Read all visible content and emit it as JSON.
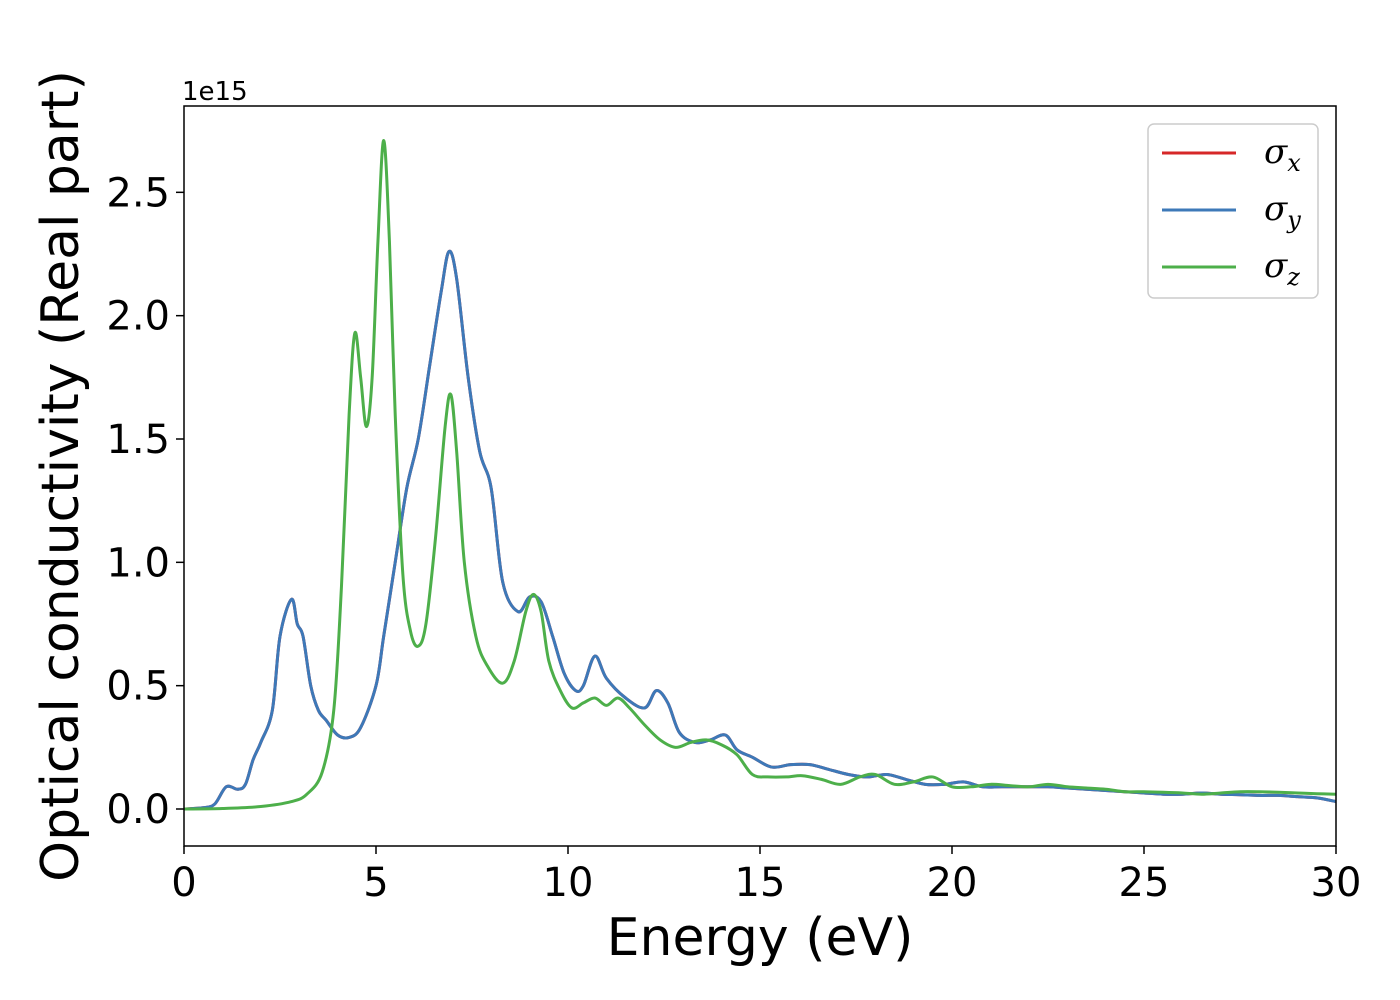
{
  "chart_data": {
    "type": "line",
    "title": "",
    "xlabel": "Energy (eV)",
    "ylabel": "Optical conductivity (Real part)",
    "y_offset_text": "1e15",
    "xlim": [
      0,
      30
    ],
    "ylim": [
      -0.15,
      2.85
    ],
    "x_ticks": [
      0,
      5,
      10,
      15,
      20,
      25,
      30
    ],
    "x_tick_labels": [
      "0",
      "5",
      "10",
      "15",
      "20",
      "25",
      "30"
    ],
    "y_ticks": [
      0.0,
      0.5,
      1.0,
      1.5,
      2.0,
      2.5
    ],
    "y_tick_labels": [
      "0.0",
      "0.5",
      "1.0",
      "1.5",
      "2.0",
      "2.5"
    ],
    "grid": false,
    "legend_position": "top-right",
    "series": [
      {
        "name": "σ_x",
        "legend_symbol": "σ",
        "legend_sub": "x",
        "color": "#d62728",
        "x": [
          0,
          0.5,
          0.8,
          1.1,
          1.4,
          1.6,
          1.8,
          2.0,
          2.3,
          2.5,
          2.8,
          2.95,
          3.1,
          3.3,
          3.5,
          3.7,
          4.0,
          4.3,
          4.6,
          5.0,
          5.2,
          5.5,
          5.8,
          6.1,
          6.4,
          6.7,
          6.9,
          7.1,
          7.4,
          7.7,
          8.0,
          8.3,
          8.7,
          9.0,
          9.3,
          9.6,
          9.9,
          10.2,
          10.4,
          10.7,
          11.0,
          11.5,
          12.0,
          12.3,
          12.6,
          12.9,
          13.3,
          13.7,
          14.1,
          14.4,
          14.8,
          15.3,
          15.8,
          16.3,
          16.8,
          17.3,
          17.8,
          18.3,
          18.8,
          19.3,
          19.8,
          20.3,
          20.8,
          21.3,
          22.0,
          22.5,
          23.0,
          23.5,
          24.0,
          24.5,
          25.0,
          25.5,
          26.0,
          26.5,
          27.0,
          27.5,
          28.0,
          28.5,
          29.0,
          29.5,
          30.0
        ],
        "y": [
          0.0,
          0.005,
          0.02,
          0.09,
          0.08,
          0.1,
          0.2,
          0.27,
          0.4,
          0.7,
          0.85,
          0.75,
          0.7,
          0.5,
          0.4,
          0.36,
          0.3,
          0.29,
          0.33,
          0.5,
          0.7,
          1.0,
          1.3,
          1.5,
          1.8,
          2.1,
          2.26,
          2.15,
          1.75,
          1.45,
          1.3,
          0.92,
          0.8,
          0.86,
          0.84,
          0.7,
          0.55,
          0.48,
          0.5,
          0.62,
          0.53,
          0.45,
          0.41,
          0.48,
          0.43,
          0.31,
          0.27,
          0.28,
          0.3,
          0.24,
          0.21,
          0.17,
          0.18,
          0.18,
          0.16,
          0.14,
          0.13,
          0.14,
          0.12,
          0.1,
          0.1,
          0.11,
          0.09,
          0.09,
          0.09,
          0.09,
          0.085,
          0.08,
          0.075,
          0.07,
          0.065,
          0.06,
          0.06,
          0.065,
          0.06,
          0.058,
          0.055,
          0.055,
          0.05,
          0.045,
          0.03
        ]
      },
      {
        "name": "σ_y",
        "legend_symbol": "σ",
        "legend_sub": "y",
        "color": "#3d79b8",
        "x": [
          0,
          0.5,
          0.8,
          1.1,
          1.4,
          1.6,
          1.8,
          2.0,
          2.3,
          2.5,
          2.8,
          2.95,
          3.1,
          3.3,
          3.5,
          3.7,
          4.0,
          4.3,
          4.6,
          5.0,
          5.2,
          5.5,
          5.8,
          6.1,
          6.4,
          6.7,
          6.9,
          7.1,
          7.4,
          7.7,
          8.0,
          8.3,
          8.7,
          9.0,
          9.3,
          9.6,
          9.9,
          10.2,
          10.4,
          10.7,
          11.0,
          11.5,
          12.0,
          12.3,
          12.6,
          12.9,
          13.3,
          13.7,
          14.1,
          14.4,
          14.8,
          15.3,
          15.8,
          16.3,
          16.8,
          17.3,
          17.8,
          18.3,
          18.8,
          19.3,
          19.8,
          20.3,
          20.8,
          21.3,
          22.0,
          22.5,
          23.0,
          23.5,
          24.0,
          24.5,
          25.0,
          25.5,
          26.0,
          26.5,
          27.0,
          27.5,
          28.0,
          28.5,
          29.0,
          29.5,
          30.0
        ],
        "y": [
          0.0,
          0.005,
          0.02,
          0.09,
          0.08,
          0.1,
          0.2,
          0.27,
          0.4,
          0.7,
          0.85,
          0.75,
          0.7,
          0.5,
          0.4,
          0.36,
          0.3,
          0.29,
          0.33,
          0.5,
          0.7,
          1.0,
          1.3,
          1.5,
          1.8,
          2.1,
          2.26,
          2.15,
          1.75,
          1.45,
          1.3,
          0.92,
          0.8,
          0.86,
          0.84,
          0.7,
          0.55,
          0.48,
          0.5,
          0.62,
          0.53,
          0.45,
          0.41,
          0.48,
          0.43,
          0.31,
          0.27,
          0.28,
          0.3,
          0.24,
          0.21,
          0.17,
          0.18,
          0.18,
          0.16,
          0.14,
          0.13,
          0.14,
          0.12,
          0.1,
          0.1,
          0.11,
          0.09,
          0.09,
          0.09,
          0.09,
          0.085,
          0.08,
          0.075,
          0.07,
          0.065,
          0.06,
          0.06,
          0.065,
          0.06,
          0.058,
          0.055,
          0.055,
          0.05,
          0.045,
          0.03
        ]
      },
      {
        "name": "σ_z",
        "legend_symbol": "σ",
        "legend_sub": "z",
        "color": "#4daf4a",
        "x": [
          0,
          1.0,
          2.0,
          2.8,
          3.2,
          3.6,
          3.9,
          4.1,
          4.3,
          4.45,
          4.6,
          4.75,
          4.9,
          5.05,
          5.2,
          5.35,
          5.5,
          5.7,
          5.9,
          6.1,
          6.3,
          6.55,
          6.8,
          6.95,
          7.1,
          7.3,
          7.6,
          7.9,
          8.3,
          8.6,
          8.9,
          9.1,
          9.3,
          9.5,
          9.8,
          10.1,
          10.4,
          10.7,
          11.0,
          11.3,
          11.6,
          12.0,
          12.4,
          12.8,
          13.2,
          13.6,
          14.0,
          14.4,
          14.8,
          15.2,
          15.7,
          16.1,
          16.6,
          17.1,
          17.6,
          18.0,
          18.5,
          19.0,
          19.5,
          20.0,
          20.5,
          21.0,
          21.5,
          22.0,
          22.5,
          23.0,
          23.5,
          24.0,
          24.5,
          25.0,
          25.5,
          26.0,
          26.5,
          27.0,
          27.5,
          28.0,
          28.5,
          29.0,
          29.5,
          30.0
        ],
        "y": [
          0.0,
          0.002,
          0.01,
          0.03,
          0.06,
          0.15,
          0.4,
          0.9,
          1.6,
          1.93,
          1.75,
          1.55,
          1.75,
          2.3,
          2.71,
          2.3,
          1.6,
          0.95,
          0.72,
          0.66,
          0.75,
          1.1,
          1.55,
          1.68,
          1.45,
          1.0,
          0.7,
          0.58,
          0.51,
          0.6,
          0.8,
          0.87,
          0.8,
          0.6,
          0.48,
          0.41,
          0.43,
          0.45,
          0.42,
          0.45,
          0.41,
          0.34,
          0.28,
          0.25,
          0.27,
          0.28,
          0.26,
          0.22,
          0.14,
          0.13,
          0.13,
          0.135,
          0.12,
          0.1,
          0.13,
          0.14,
          0.1,
          0.11,
          0.13,
          0.09,
          0.09,
          0.1,
          0.095,
          0.09,
          0.1,
          0.09,
          0.085,
          0.08,
          0.07,
          0.07,
          0.068,
          0.065,
          0.06,
          0.065,
          0.07,
          0.07,
          0.068,
          0.065,
          0.062,
          0.06
        ]
      }
    ]
  }
}
